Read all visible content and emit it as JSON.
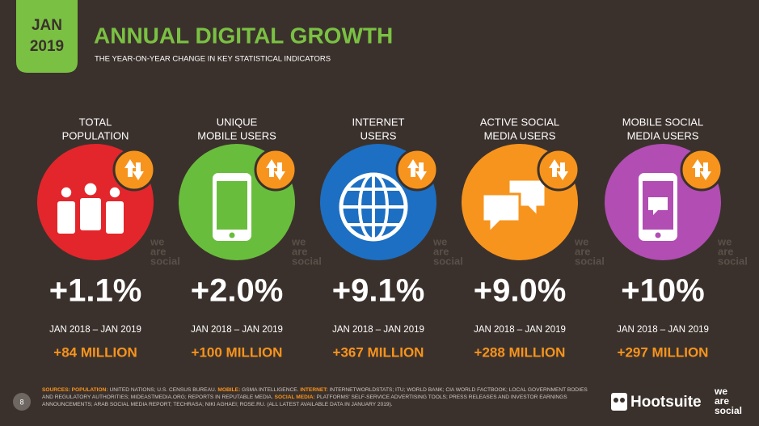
{
  "header": {
    "month": "JAN",
    "year": "2019",
    "title": "ANNUAL DIGITAL GROWTH",
    "subtitle": "THE YEAR-ON-YEAR CHANGE IN KEY STATISTICAL INDICATORS"
  },
  "items": [
    {
      "label_lines": [
        "TOTAL",
        "POPULATION"
      ],
      "change": "+1.1%",
      "period": "JAN 2018 – JAN 2019",
      "absolute": "+84 MILLION",
      "color": "#e3262b"
    },
    {
      "label_lines": [
        "UNIQUE",
        "MOBILE USERS"
      ],
      "change": "+2.0%",
      "period": "JAN 2018 – JAN 2019",
      "absolute": "+100 MILLION",
      "color": "#69bd3c"
    },
    {
      "label_lines": [
        "INTERNET",
        "USERS"
      ],
      "change": "+9.1%",
      "period": "JAN 2018 – JAN 2019",
      "absolute": "+367 MILLION",
      "color": "#1c6fc3"
    },
    {
      "label_lines": [
        "ACTIVE SOCIAL",
        "MEDIA USERS"
      ],
      "change": "+9.0%",
      "period": "JAN 2018 – JAN 2019",
      "absolute": "+288 MILLION",
      "color": "#f7941d"
    },
    {
      "label_lines": [
        "MOBILE SOCIAL",
        "MEDIA USERS"
      ],
      "change": "+10%",
      "period": "JAN 2018 – JAN 2019",
      "absolute": "+297 MILLION",
      "color": "#b14db3"
    }
  ],
  "watermark": [
    "we",
    "are",
    "social"
  ],
  "footer": {
    "page": "8",
    "sources": [
      {
        "label": "SOURCES:",
        "text": ""
      },
      {
        "label": "POPULATION:",
        "text": "UNITED NATIONS; U.S. CENSUS BUREAU."
      },
      {
        "label": "MOBILE:",
        "text": "GSMA INTELLIGENCE."
      },
      {
        "label": "INTERNET:",
        "text": "INTERNETWORLDSTATS; ITU; WORLD BANK; CIA WORLD FACTBOOK; LOCAL GOVERNMENT BODIES AND REGULATORY AUTHORITIES; MIDEASTMEDIA.ORG; REPORTS IN REPUTABLE MEDIA."
      },
      {
        "label": "SOCIAL MEDIA:",
        "text": "PLATFORMS' SELF-SERVICE ADVERTISING TOOLS; PRESS RELEASES AND INVESTOR EARNINGS ANNOUNCEMENTS; ARAB SOCIAL MEDIA REPORT; TECHRASA; NIKI AGHAEI; ROSE.RU. (ALL LATEST AVAILABLE DATA IN JANUARY 2019)."
      }
    ],
    "brand": "Hootsuite",
    "partner": [
      "we",
      "are",
      "social"
    ]
  }
}
